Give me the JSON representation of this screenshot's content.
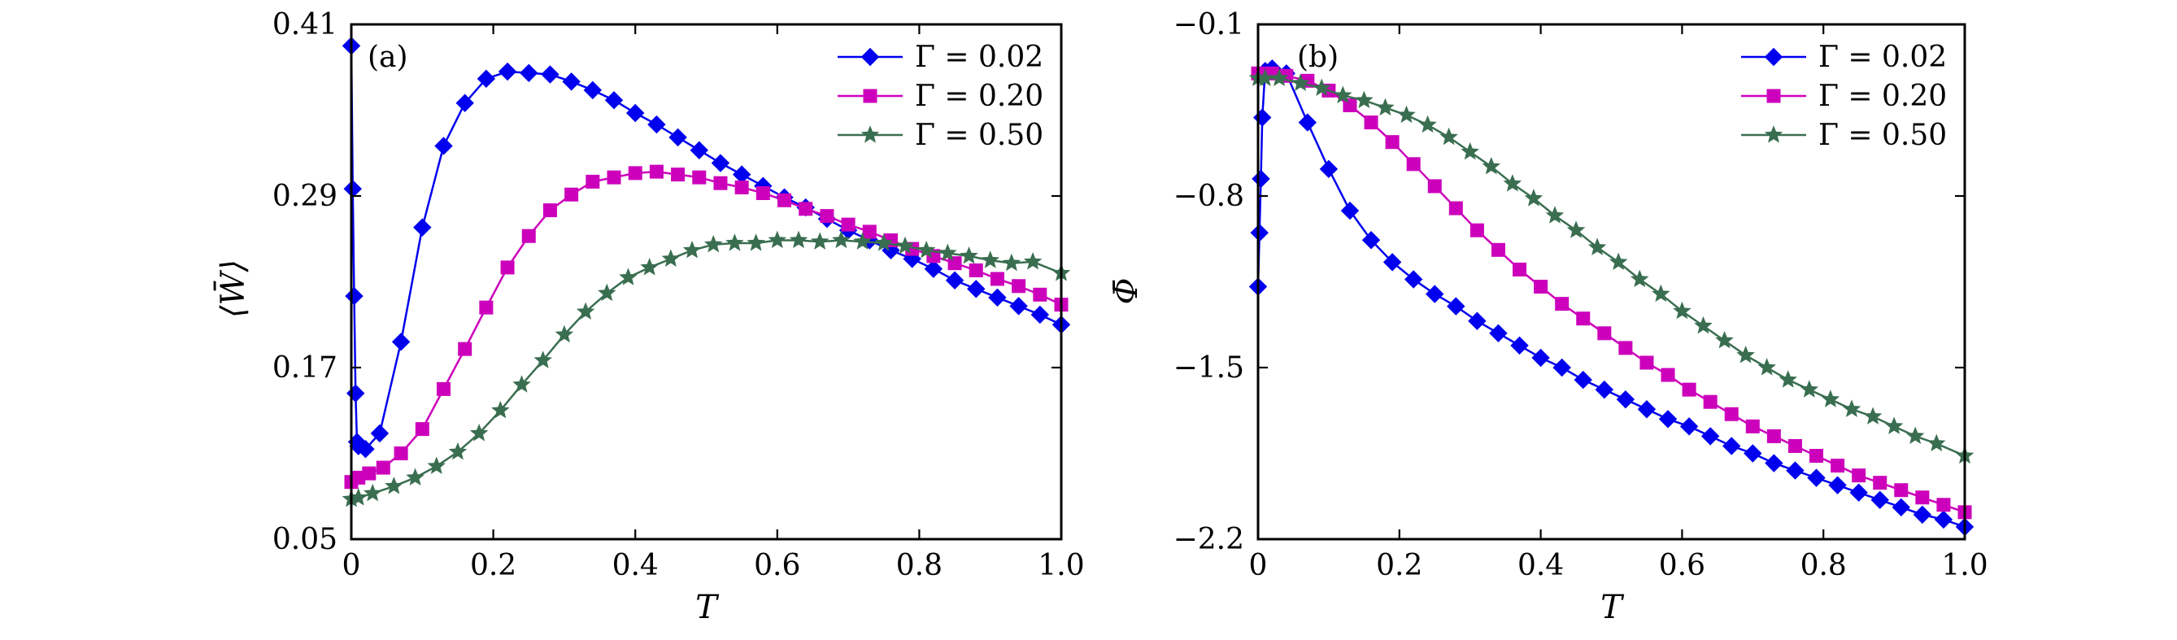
{
  "chart_data": [
    {
      "type": "line",
      "panel_label": "(a)",
      "xlabel": "T",
      "ylabel": "⟨W̄⟩",
      "xlim": [
        0,
        1.0
      ],
      "ylim": [
        0.05,
        0.41
      ],
      "xticks": [
        0,
        0.2,
        0.4,
        0.6,
        0.8,
        1.0
      ],
      "xtick_labels": [
        "0",
        "0.2",
        "0.4",
        "0.6",
        "0.8",
        "1.0"
      ],
      "yticks": [
        0.05,
        0.17,
        0.29,
        0.41
      ],
      "ytick_labels": [
        "0.05",
        "0.17",
        "0.29",
        "0.41"
      ],
      "legend_position": "top-right",
      "series": [
        {
          "name": "Γ = 0.02",
          "color": "#0000ee",
          "marker": "diamond",
          "x": [
            0.0,
            0.002,
            0.004,
            0.006,
            0.008,
            0.01,
            0.02,
            0.04,
            0.07,
            0.1,
            0.13,
            0.16,
            0.19,
            0.22,
            0.25,
            0.28,
            0.31,
            0.34,
            0.37,
            0.4,
            0.43,
            0.46,
            0.49,
            0.52,
            0.55,
            0.58,
            0.61,
            0.64,
            0.67,
            0.7,
            0.73,
            0.76,
            0.79,
            0.82,
            0.85,
            0.88,
            0.91,
            0.94,
            0.97,
            1.0
          ],
          "y": [
            0.395,
            0.295,
            0.22,
            0.152,
            0.118,
            0.115,
            0.113,
            0.124,
            0.188,
            0.268,
            0.325,
            0.355,
            0.372,
            0.377,
            0.376,
            0.375,
            0.37,
            0.364,
            0.357,
            0.348,
            0.34,
            0.331,
            0.322,
            0.313,
            0.305,
            0.297,
            0.289,
            0.282,
            0.274,
            0.266,
            0.259,
            0.252,
            0.246,
            0.239,
            0.231,
            0.225,
            0.219,
            0.213,
            0.207,
            0.2
          ]
        },
        {
          "name": "Γ = 0.20",
          "color": "#cc00bb",
          "marker": "square",
          "x": [
            0.0,
            0.01,
            0.025,
            0.045,
            0.07,
            0.1,
            0.13,
            0.16,
            0.19,
            0.22,
            0.25,
            0.28,
            0.31,
            0.34,
            0.37,
            0.4,
            0.43,
            0.46,
            0.49,
            0.52,
            0.55,
            0.58,
            0.61,
            0.64,
            0.67,
            0.7,
            0.73,
            0.76,
            0.79,
            0.82,
            0.85,
            0.88,
            0.91,
            0.94,
            0.97,
            1.0
          ],
          "y": [
            0.09,
            0.093,
            0.096,
            0.1,
            0.11,
            0.127,
            0.155,
            0.183,
            0.212,
            0.24,
            0.262,
            0.28,
            0.291,
            0.3,
            0.303,
            0.306,
            0.307,
            0.305,
            0.303,
            0.299,
            0.296,
            0.292,
            0.287,
            0.281,
            0.276,
            0.27,
            0.265,
            0.259,
            0.253,
            0.248,
            0.243,
            0.238,
            0.232,
            0.227,
            0.221,
            0.214
          ]
        },
        {
          "name": "Γ = 0.50",
          "color": "#3a6e50",
          "marker": "star",
          "x": [
            0.0,
            0.01,
            0.03,
            0.06,
            0.09,
            0.12,
            0.15,
            0.18,
            0.21,
            0.24,
            0.27,
            0.3,
            0.33,
            0.36,
            0.39,
            0.42,
            0.45,
            0.48,
            0.51,
            0.54,
            0.57,
            0.6,
            0.63,
            0.66,
            0.69,
            0.72,
            0.75,
            0.78,
            0.81,
            0.84,
            0.87,
            0.9,
            0.93,
            0.96,
            1.0
          ],
          "y": [
            0.078,
            0.079,
            0.082,
            0.087,
            0.093,
            0.101,
            0.111,
            0.124,
            0.14,
            0.158,
            0.175,
            0.193,
            0.209,
            0.222,
            0.233,
            0.24,
            0.246,
            0.252,
            0.256,
            0.257,
            0.257,
            0.259,
            0.259,
            0.258,
            0.259,
            0.258,
            0.257,
            0.255,
            0.252,
            0.25,
            0.248,
            0.245,
            0.243,
            0.244,
            0.236
          ]
        }
      ]
    },
    {
      "type": "line",
      "panel_label": "(b)",
      "xlabel": "T",
      "ylabel": "Φ̄",
      "xlim": [
        0,
        1.0
      ],
      "ylim": [
        -2.2,
        -0.1
      ],
      "xticks": [
        0,
        0.2,
        0.4,
        0.6,
        0.8,
        1.0
      ],
      "xtick_labels": [
        "0",
        "0.2",
        "0.4",
        "0.6",
        "0.8",
        "1.0"
      ],
      "yticks": [
        -2.2,
        -1.5,
        -0.8,
        -0.1
      ],
      "ytick_labels": [
        "−2.2",
        "−1.5",
        "−0.8",
        "−0.1"
      ],
      "legend_position": "top-right",
      "series": [
        {
          "name": "Γ = 0.02",
          "color": "#0000ee",
          "marker": "diamond",
          "x": [
            0.0,
            0.002,
            0.004,
            0.006,
            0.01,
            0.02,
            0.04,
            0.07,
            0.1,
            0.13,
            0.16,
            0.19,
            0.22,
            0.25,
            0.28,
            0.31,
            0.34,
            0.37,
            0.4,
            0.43,
            0.46,
            0.49,
            0.52,
            0.55,
            0.58,
            0.61,
            0.64,
            0.67,
            0.7,
            0.73,
            0.76,
            0.79,
            0.82,
            0.85,
            0.88,
            0.91,
            0.94,
            0.97,
            1.0
          ],
          "y": [
            -1.17,
            -0.95,
            -0.73,
            -0.48,
            -0.29,
            -0.28,
            -0.3,
            -0.5,
            -0.69,
            -0.86,
            -0.98,
            -1.07,
            -1.14,
            -1.2,
            -1.25,
            -1.31,
            -1.36,
            -1.41,
            -1.46,
            -1.5,
            -1.55,
            -1.59,
            -1.63,
            -1.67,
            -1.71,
            -1.74,
            -1.78,
            -1.82,
            -1.85,
            -1.89,
            -1.92,
            -1.95,
            -1.98,
            -2.01,
            -2.04,
            -2.07,
            -2.1,
            -2.12,
            -2.15
          ]
        },
        {
          "name": "Γ = 0.20",
          "color": "#cc00bb",
          "marker": "square",
          "x": [
            0.0,
            0.02,
            0.04,
            0.07,
            0.1,
            0.13,
            0.16,
            0.19,
            0.22,
            0.25,
            0.28,
            0.31,
            0.34,
            0.37,
            0.4,
            0.43,
            0.46,
            0.49,
            0.52,
            0.55,
            0.58,
            0.61,
            0.64,
            0.67,
            0.7,
            0.73,
            0.76,
            0.79,
            0.82,
            0.85,
            0.88,
            0.91,
            0.94,
            0.97,
            1.0
          ],
          "y": [
            -0.3,
            -0.3,
            -0.31,
            -0.33,
            -0.37,
            -0.43,
            -0.5,
            -0.58,
            -0.67,
            -0.76,
            -0.85,
            -0.94,
            -1.02,
            -1.1,
            -1.17,
            -1.24,
            -1.3,
            -1.36,
            -1.42,
            -1.48,
            -1.53,
            -1.59,
            -1.64,
            -1.69,
            -1.74,
            -1.78,
            -1.82,
            -1.86,
            -1.9,
            -1.94,
            -1.97,
            -2.0,
            -2.03,
            -2.06,
            -2.09
          ]
        },
        {
          "name": "Γ = 0.50",
          "color": "#3a6e50",
          "marker": "star",
          "x": [
            0.0,
            0.01,
            0.03,
            0.06,
            0.09,
            0.12,
            0.15,
            0.18,
            0.21,
            0.24,
            0.27,
            0.3,
            0.33,
            0.36,
            0.39,
            0.42,
            0.45,
            0.48,
            0.51,
            0.54,
            0.57,
            0.6,
            0.63,
            0.66,
            0.69,
            0.72,
            0.75,
            0.78,
            0.81,
            0.84,
            0.87,
            0.9,
            0.93,
            0.96,
            1.0
          ],
          "y": [
            -0.32,
            -0.32,
            -0.32,
            -0.34,
            -0.36,
            -0.39,
            -0.41,
            -0.44,
            -0.47,
            -0.51,
            -0.56,
            -0.62,
            -0.68,
            -0.75,
            -0.81,
            -0.88,
            -0.94,
            -1.01,
            -1.07,
            -1.14,
            -1.2,
            -1.27,
            -1.33,
            -1.39,
            -1.45,
            -1.5,
            -1.55,
            -1.59,
            -1.63,
            -1.67,
            -1.7,
            -1.74,
            -1.78,
            -1.81,
            -1.86
          ]
        }
      ]
    }
  ]
}
